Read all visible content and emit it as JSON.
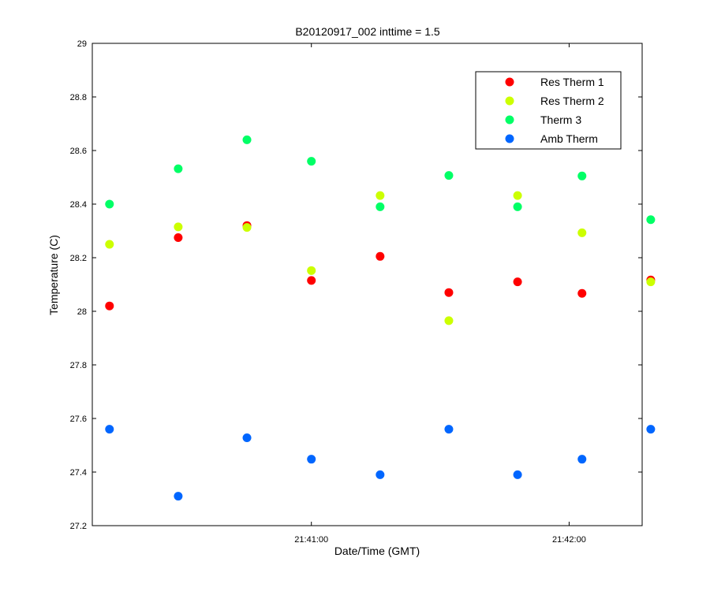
{
  "chart_data": {
    "type": "scatter",
    "title": "B20120917_002 inttime = 1.5",
    "xlabel": "Date/Time (GMT)",
    "ylabel": "Temperature (C)",
    "ylim": [
      27.2,
      29
    ],
    "yticks": [
      27.2,
      27.4,
      27.6,
      27.8,
      28,
      28.2,
      28.4,
      28.6,
      28.8,
      29
    ],
    "ytick_labels": [
      "27.2",
      "27.4",
      "27.6",
      "27.8",
      "28",
      "28.2",
      "28.4",
      "28.6",
      "28.8",
      "29"
    ],
    "xlim": [
      "21:40:09",
      "21:42:17"
    ],
    "xticks": [
      "21:41:00",
      "21:42:00"
    ],
    "xtick_labels": [
      "21:41:00",
      "21:42:00"
    ],
    "x": [
      "21:40:13",
      "21:40:29",
      "21:40:45",
      "21:41:00",
      "21:41:16",
      "21:41:32",
      "21:41:48",
      "21:42:03",
      "21:42:19"
    ],
    "grid": false,
    "legend_position": "top-right",
    "series": [
      {
        "name": "Res Therm 1",
        "color": "#ff0000",
        "values": [
          28.02,
          28.275,
          28.32,
          28.115,
          28.205,
          28.07,
          28.11,
          28.067,
          28.117
        ]
      },
      {
        "name": "Res Therm 2",
        "color": "#ccff00",
        "values": [
          28.25,
          28.315,
          28.313,
          28.152,
          28.432,
          27.965,
          28.432,
          28.293,
          28.11
        ]
      },
      {
        "name": "Therm 3",
        "color": "#00ff66",
        "values": [
          28.4,
          28.532,
          28.64,
          28.56,
          28.39,
          28.507,
          28.39,
          28.505,
          28.342
        ]
      },
      {
        "name": "Amb Therm",
        "color": "#0066ff",
        "values": [
          27.56,
          27.31,
          27.528,
          27.448,
          27.39,
          27.56,
          27.39,
          27.448,
          27.56
        ]
      }
    ]
  }
}
